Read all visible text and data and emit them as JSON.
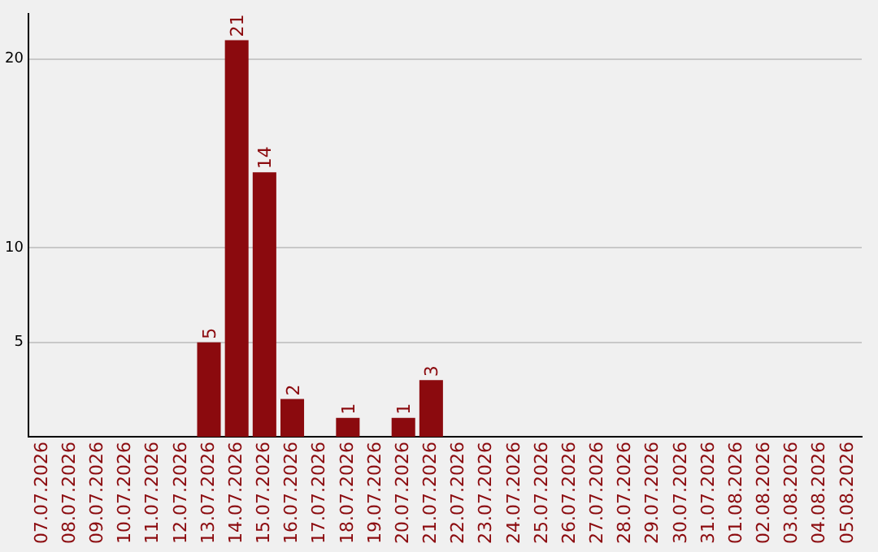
{
  "chart_data": {
    "type": "bar",
    "categories": [
      "07.07.2026",
      "08.07.2026",
      "09.07.2026",
      "10.07.2026",
      "11.07.2026",
      "12.07.2026",
      "13.07.2026",
      "14.07.2026",
      "15.07.2026",
      "16.07.2026",
      "17.07.2026",
      "18.07.2026",
      "19.07.2026",
      "20.07.2026",
      "21.07.2026",
      "22.07.2026",
      "23.07.2026",
      "24.07.2026",
      "25.07.2026",
      "26.07.2026",
      "27.07.2026",
      "28.07.2026",
      "29.07.2026",
      "30.07.2026",
      "31.07.2026",
      "01.08.2026",
      "02.08.2026",
      "03.08.2026",
      "04.08.2026",
      "05.08.2026"
    ],
    "values": [
      0,
      0,
      0,
      0,
      0,
      0,
      5,
      21,
      14,
      2,
      0,
      1,
      0,
      1,
      3,
      0,
      0,
      0,
      0,
      0,
      0,
      0,
      0,
      0,
      0,
      0,
      0,
      0,
      0,
      0
    ],
    "value_labels": [
      null,
      null,
      null,
      null,
      null,
      null,
      "5",
      "21",
      "14",
      "2",
      null,
      "1",
      null,
      "1",
      "3",
      null,
      null,
      null,
      null,
      null,
      null,
      null,
      null,
      null,
      null,
      null,
      null,
      null,
      null,
      null
    ],
    "color": "#8b0a0e",
    "ylim": [
      0,
      22.4
    ],
    "yticks": [
      5,
      10,
      20
    ],
    "grid": "y",
    "legend": false
  }
}
